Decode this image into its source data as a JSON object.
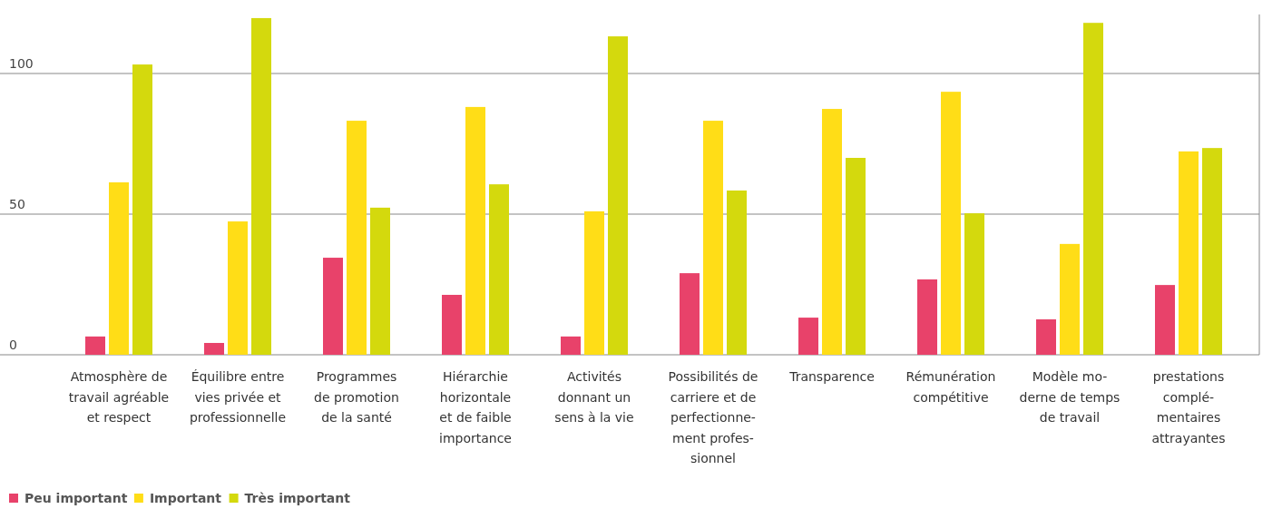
{
  "chart_data": {
    "type": "bar",
    "categories": [
      "Atmosphère de\ntravail agréable\net respect",
      "Équilibre entre\nvies privée et\nprofessionnelle",
      "Programmes\nde promotion\nde la santé",
      "Hiérarchie\nhorizontale\net de faible\nimportance",
      "Activités\ndonnant un\nsens à la vie",
      "Possibilités de\ncarriere et de\nperfectionne-\nment profes-\nsionnel",
      "Transparence",
      "Rémunération\ncompétitive",
      "Modèle mo-\nderne de temps\nde travail",
      "prestations\ncomplé-\nmentaires\nattrayantes"
    ],
    "series": [
      {
        "name": "Peu important",
        "color": "#e8426a",
        "values": [
          6.5,
          4.2,
          34.5,
          21.3,
          6.5,
          29,
          13.2,
          26.8,
          12.6,
          24.8
        ]
      },
      {
        "name": "Important",
        "color": "#ffdd17",
        "values": [
          61.3,
          47.4,
          83.2,
          88.1,
          51,
          83.2,
          87.4,
          93.5,
          39.4,
          72.3
        ]
      },
      {
        "name": "Très important",
        "color": "#d4d90d",
        "values": [
          103.2,
          119.7,
          52.3,
          60.6,
          113.2,
          58.4,
          70,
          50.3,
          118,
          73.5
        ]
      }
    ],
    "ylim": [
      0,
      121
    ],
    "yticks": [
      0,
      50,
      100
    ],
    "grid": "y",
    "legend": "bottom left"
  }
}
